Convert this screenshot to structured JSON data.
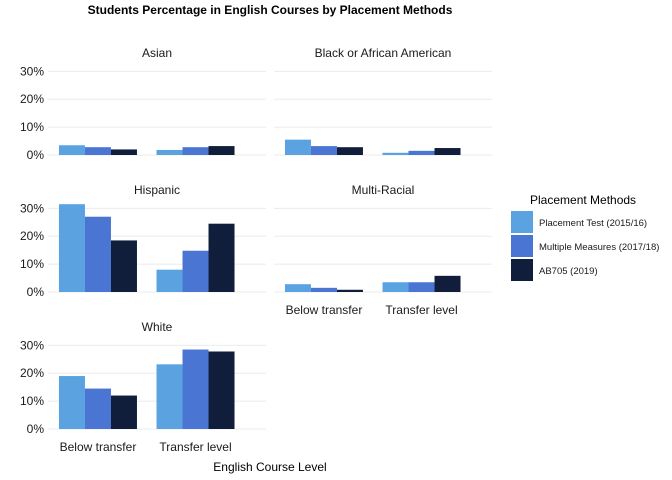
{
  "chart_data": {
    "type": "bar",
    "title": "Students Percentage in English Courses by Placement Methods",
    "xlabel": "English Course Level",
    "ylabel": "",
    "categories": [
      "Below transfer",
      "Transfer level"
    ],
    "ylim": [
      0,
      33
    ],
    "yticks": [
      0,
      10,
      20,
      30
    ],
    "ytick_labels": [
      "0%",
      "10%",
      "20%",
      "30%"
    ],
    "legend": {
      "title": "Placement Methods",
      "position": "right",
      "entries": [
        {
          "name": "Placement Test (2015/16)",
          "color": "#5ba3e0"
        },
        {
          "name": "Multiple Measures (2017/18)",
          "color": "#4a75d3"
        },
        {
          "name": "AB705 (2019)",
          "color": "#111e3b"
        }
      ]
    },
    "panels": [
      {
        "name": "Asian",
        "series": [
          {
            "name": "Placement Test (2015/16)",
            "values": [
              3.5,
              1.8
            ]
          },
          {
            "name": "Multiple Measures (2017/18)",
            "values": [
              2.8,
              2.8
            ]
          },
          {
            "name": "AB705 (2019)",
            "values": [
              2.0,
              3.2
            ]
          }
        ]
      },
      {
        "name": "Black or African American",
        "series": [
          {
            "name": "Placement Test (2015/16)",
            "values": [
              5.5,
              0.8
            ]
          },
          {
            "name": "Multiple Measures (2017/18)",
            "values": [
              3.2,
              1.5
            ]
          },
          {
            "name": "AB705 (2019)",
            "values": [
              2.8,
              2.5
            ]
          }
        ]
      },
      {
        "name": "Hispanic",
        "series": [
          {
            "name": "Placement Test (2015/16)",
            "values": [
              31.5,
              8.0
            ]
          },
          {
            "name": "Multiple Measures (2017/18)",
            "values": [
              27.0,
              14.8
            ]
          },
          {
            "name": "AB705 (2019)",
            "values": [
              18.5,
              24.5
            ]
          }
        ]
      },
      {
        "name": "Multi-Racial",
        "series": [
          {
            "name": "Placement Test (2015/16)",
            "values": [
              2.8,
              3.5
            ]
          },
          {
            "name": "Multiple Measures (2017/18)",
            "values": [
              1.5,
              3.5
            ]
          },
          {
            "name": "AB705 (2019)",
            "values": [
              0.8,
              5.8
            ]
          }
        ]
      },
      {
        "name": "White",
        "series": [
          {
            "name": "Placement Test (2015/16)",
            "values": [
              19.0,
              23.2
            ]
          },
          {
            "name": "Multiple Measures (2017/18)",
            "values": [
              14.5,
              28.5
            ]
          },
          {
            "name": "AB705 (2019)",
            "values": [
              12.0,
              27.8
            ]
          }
        ]
      }
    ]
  }
}
